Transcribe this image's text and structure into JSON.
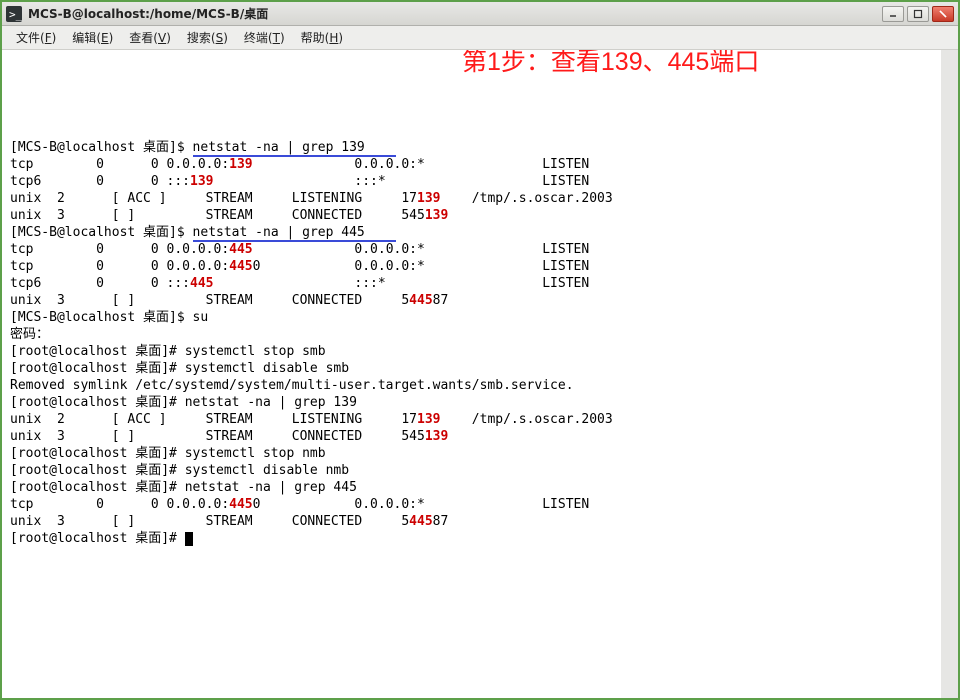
{
  "window": {
    "title": "MCS-B@localhost:/home/MCS-B/桌面"
  },
  "menu": {
    "file": {
      "label": "文件",
      "accel": "F"
    },
    "edit": {
      "label": "编辑",
      "accel": "E"
    },
    "view": {
      "label": "查看",
      "accel": "V"
    },
    "search": {
      "label": "搜索",
      "accel": "S"
    },
    "term": {
      "label": "终端",
      "accel": "T"
    },
    "help": {
      "label": "帮助",
      "accel": "H"
    }
  },
  "annotation": "第1步：查看139、445端口",
  "colors": {
    "highlight": "#cc0000",
    "underline": "#3a4bd8",
    "annotation": "#ff1a1a",
    "window_border": "#5da04a",
    "bg": "#ffffff",
    "text": "#000000"
  },
  "lines": [
    {
      "segs": [
        {
          "t": "[MCS-B@localhost 桌面]$ "
        },
        {
          "t": "netstat -na | grep 139    ",
          "u": true
        }
      ]
    },
    {
      "segs": [
        {
          "t": "tcp        0      0 0.0.0.0:"
        },
        {
          "t": "139",
          "r": true
        },
        {
          "t": "             0.0.0.0:*               LISTEN"
        }
      ]
    },
    {
      "segs": [
        {
          "t": "tcp6       0      0 :::"
        },
        {
          "t": "139",
          "r": true
        },
        {
          "t": "                  :::*                    LISTEN"
        }
      ]
    },
    {
      "segs": [
        {
          "t": "unix  2      [ ACC ]     STREAM     LISTENING     17"
        },
        {
          "t": "139",
          "r": true
        },
        {
          "t": "    /tmp/.s.oscar.2003"
        }
      ]
    },
    {
      "segs": [
        {
          "t": "unix  3      [ ]         STREAM     CONNECTED     545"
        },
        {
          "t": "139",
          "r": true
        }
      ]
    },
    {
      "segs": [
        {
          "t": "[MCS-B@localhost 桌面]$ "
        },
        {
          "t": "netstat -na | grep 445    ",
          "u": true
        }
      ]
    },
    {
      "segs": [
        {
          "t": "tcp        0      0 0.0.0.0:"
        },
        {
          "t": "445",
          "r": true
        },
        {
          "t": "             0.0.0.0:*               LISTEN"
        }
      ]
    },
    {
      "segs": [
        {
          "t": "tcp        0      0 0.0.0.0:"
        },
        {
          "t": "445",
          "r": true
        },
        {
          "t": "0            0.0.0.0:*               LISTEN"
        }
      ]
    },
    {
      "segs": [
        {
          "t": "tcp6       0      0 :::"
        },
        {
          "t": "445",
          "r": true
        },
        {
          "t": "                  :::*                    LISTEN"
        }
      ]
    },
    {
      "segs": [
        {
          "t": "unix  3      [ ]         STREAM     CONNECTED     5"
        },
        {
          "t": "445",
          "r": true
        },
        {
          "t": "87"
        }
      ]
    },
    {
      "segs": [
        {
          "t": "[MCS-B@localhost 桌面]$ su"
        }
      ]
    },
    {
      "segs": [
        {
          "t": "密码："
        }
      ]
    },
    {
      "segs": [
        {
          "t": "[root@localhost 桌面]# systemctl stop smb"
        }
      ]
    },
    {
      "segs": [
        {
          "t": "[root@localhost 桌面]# systemctl disable smb"
        }
      ]
    },
    {
      "segs": [
        {
          "t": "Removed symlink /etc/systemd/system/multi-user.target.wants/smb.service."
        }
      ]
    },
    {
      "segs": [
        {
          "t": "[root@localhost 桌面]# netstat -na | grep 139"
        }
      ]
    },
    {
      "segs": [
        {
          "t": "unix  2      [ ACC ]     STREAM     LISTENING     17"
        },
        {
          "t": "139",
          "r": true
        },
        {
          "t": "    /tmp/.s.oscar.2003"
        }
      ]
    },
    {
      "segs": [
        {
          "t": "unix  3      [ ]         STREAM     CONNECTED     545"
        },
        {
          "t": "139",
          "r": true
        }
      ]
    },
    {
      "segs": [
        {
          "t": "[root@localhost 桌面]# systemctl stop nmb"
        }
      ]
    },
    {
      "segs": [
        {
          "t": "[root@localhost 桌面]# systemctl disable nmb"
        }
      ]
    },
    {
      "segs": [
        {
          "t": "[root@localhost 桌面]# netstat -na | grep 445"
        }
      ]
    },
    {
      "segs": [
        {
          "t": "tcp        0      0 0.0.0.0:"
        },
        {
          "t": "445",
          "r": true
        },
        {
          "t": "0            0.0.0.0:*               LISTEN"
        }
      ]
    },
    {
      "segs": [
        {
          "t": "unix  3      [ ]         STREAM     CONNECTED     5"
        },
        {
          "t": "445",
          "r": true
        },
        {
          "t": "87"
        }
      ]
    },
    {
      "segs": [
        {
          "t": "[root@localhost 桌面]# "
        }
      ],
      "cursor": true
    }
  ]
}
